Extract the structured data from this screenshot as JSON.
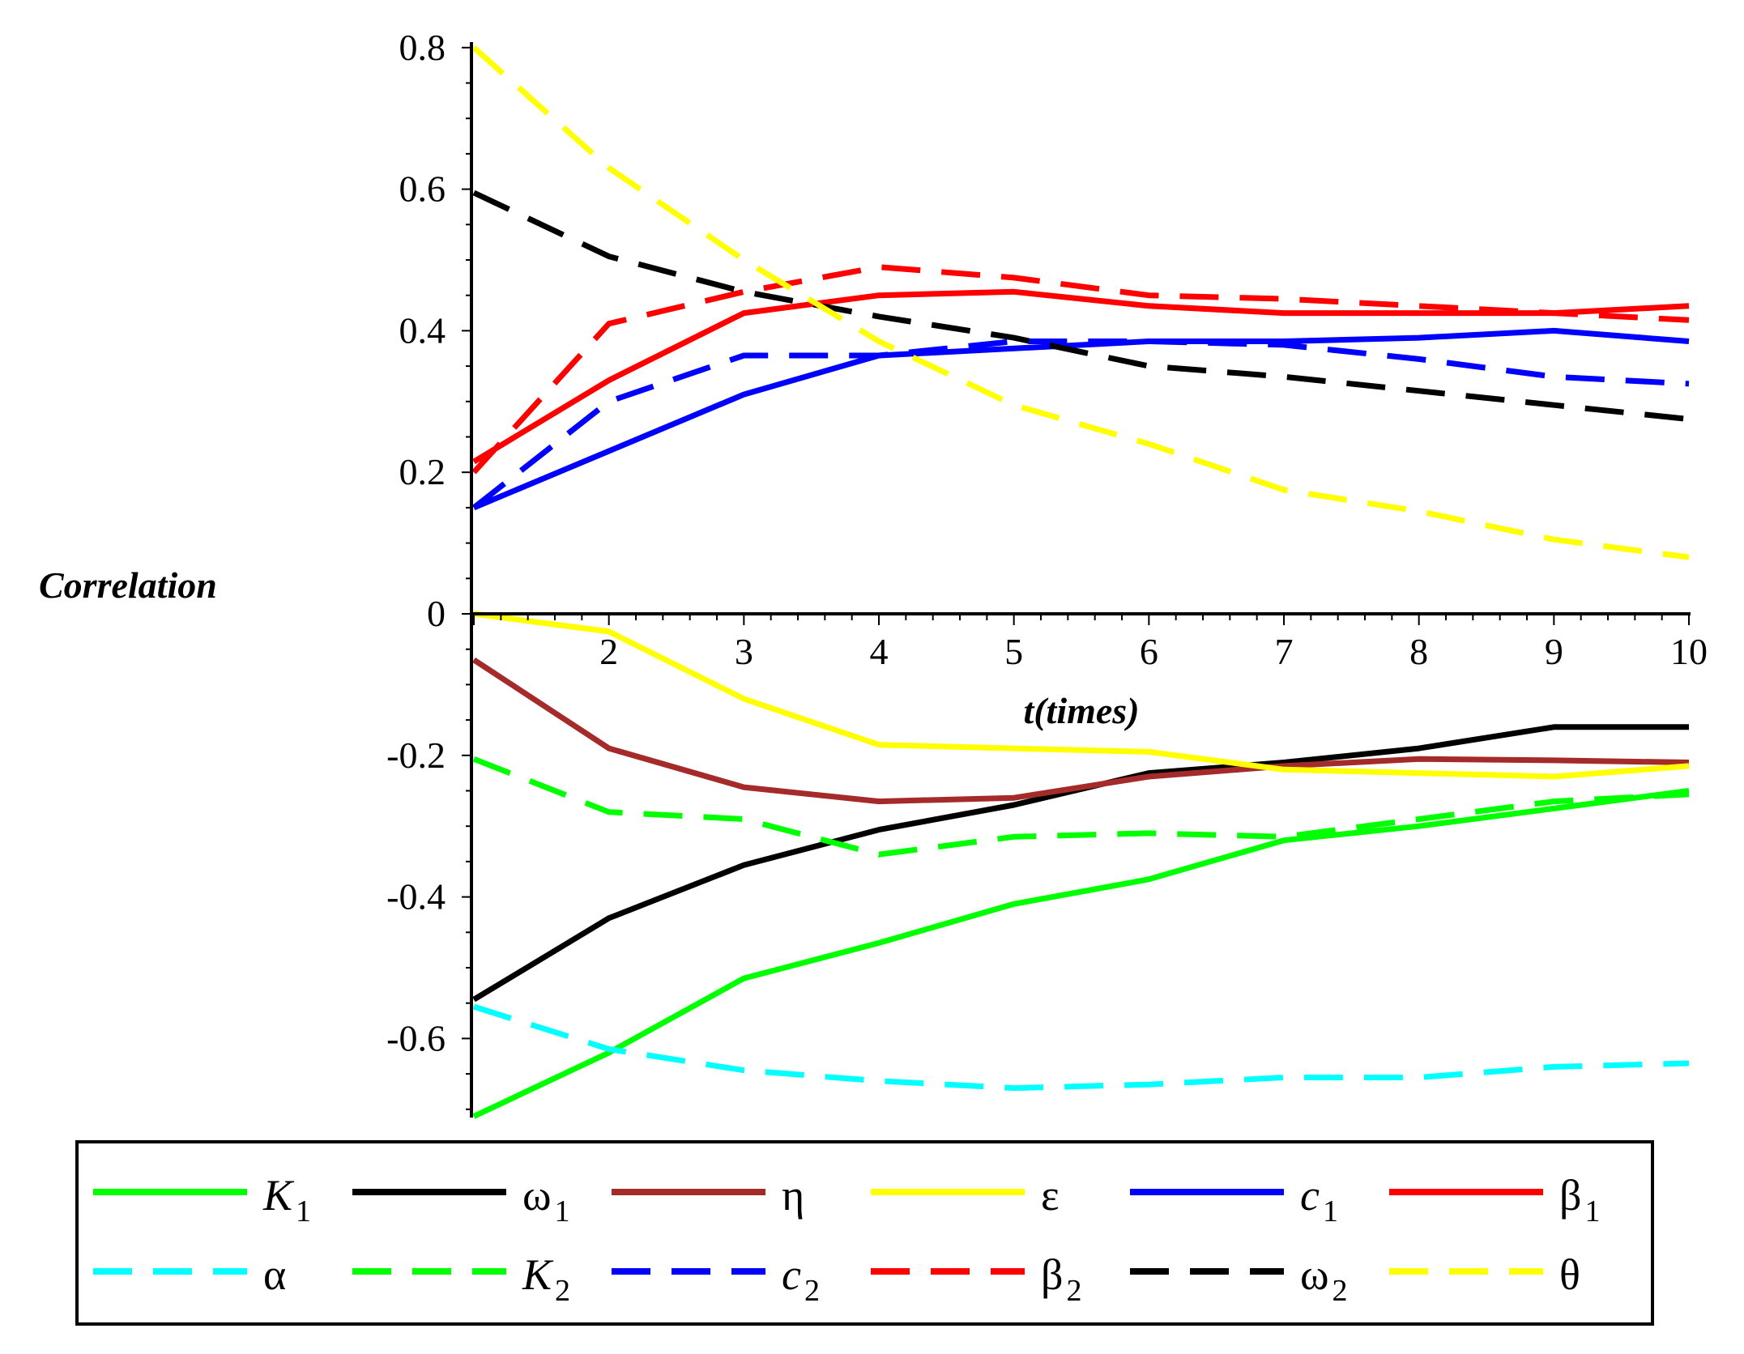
{
  "chart_data": {
    "type": "line",
    "title": "",
    "xlabel": "t(times)",
    "ylabel": "Correlation",
    "xlim": [
      1,
      10
    ],
    "ylim": [
      -0.72,
      0.82
    ],
    "x": [
      1,
      2,
      3,
      4,
      5,
      6,
      7,
      8,
      9,
      10
    ],
    "xticks": [
      "2",
      "3",
      "4",
      "5",
      "6",
      "7",
      "8",
      "9",
      "10"
    ],
    "yticks": [
      "0.8",
      "0.6",
      "0.4",
      "0.2",
      "0",
      "-0.2",
      "-0.4",
      "-0.6"
    ],
    "ytick_values": [
      0.8,
      0.6,
      0.4,
      0.2,
      0,
      -0.2,
      -0.4,
      -0.6
    ],
    "grid": false,
    "legend_position": "bottom",
    "series": [
      {
        "name": "K1",
        "label": "K",
        "sub": "1",
        "italic": true,
        "color": "#00ff00",
        "dashed": false,
        "values": [
          -0.71,
          -0.62,
          -0.515,
          -0.465,
          -0.41,
          -0.375,
          -0.32,
          -0.3,
          -0.275,
          -0.25
        ]
      },
      {
        "name": "ω1",
        "label": "ω",
        "sub": "1",
        "italic": false,
        "color": "#000000",
        "dashed": false,
        "values": [
          -0.545,
          -0.43,
          -0.355,
          -0.305,
          -0.27,
          -0.225,
          -0.21,
          -0.19,
          -0.16,
          -0.16
        ]
      },
      {
        "name": "η",
        "label": "η",
        "sub": "",
        "italic": false,
        "color": "#a52a2a",
        "dashed": false,
        "values": [
          -0.065,
          -0.19,
          -0.245,
          -0.265,
          -0.26,
          -0.23,
          -0.215,
          -0.205,
          -0.207,
          -0.21
        ]
      },
      {
        "name": "ε",
        "label": "ε",
        "sub": "",
        "italic": false,
        "color": "#ffff00",
        "dashed": false,
        "values": [
          0.0,
          -0.025,
          -0.12,
          -0.185,
          -0.19,
          -0.195,
          -0.22,
          -0.225,
          -0.23,
          -0.215
        ]
      },
      {
        "name": "c1",
        "label": "c",
        "sub": "1",
        "italic": true,
        "color": "#0000ff",
        "dashed": false,
        "values": [
          0.15,
          0.23,
          0.31,
          0.365,
          0.375,
          0.385,
          0.385,
          0.39,
          0.4,
          0.385
        ]
      },
      {
        "name": "β1",
        "label": "β",
        "sub": "1",
        "italic": false,
        "color": "#ff0000",
        "dashed": false,
        "values": [
          0.215,
          0.33,
          0.425,
          0.45,
          0.455,
          0.435,
          0.425,
          0.425,
          0.425,
          0.435
        ]
      },
      {
        "name": "α",
        "label": "α",
        "sub": "",
        "italic": false,
        "color": "#00ffff",
        "dashed": true,
        "values": [
          -0.555,
          -0.615,
          -0.645,
          -0.66,
          -0.67,
          -0.665,
          -0.655,
          -0.655,
          -0.64,
          -0.635
        ]
      },
      {
        "name": "K2",
        "label": "K",
        "sub": "2",
        "italic": true,
        "color": "#00ff00",
        "dashed": true,
        "values": [
          -0.205,
          -0.28,
          -0.29,
          -0.34,
          -0.315,
          -0.31,
          -0.315,
          -0.29,
          -0.265,
          -0.255
        ]
      },
      {
        "name": "c2",
        "label": "c",
        "sub": "2",
        "italic": true,
        "color": "#0000ff",
        "dashed": true,
        "values": [
          0.15,
          0.3,
          0.365,
          0.365,
          0.385,
          0.385,
          0.38,
          0.36,
          0.335,
          0.325
        ]
      },
      {
        "name": "β2",
        "label": "β",
        "sub": "2",
        "italic": false,
        "color": "#ff0000",
        "dashed": true,
        "values": [
          0.2,
          0.41,
          0.455,
          0.49,
          0.475,
          0.45,
          0.445,
          0.435,
          0.425,
          0.415
        ]
      },
      {
        "name": "ω2",
        "label": "ω",
        "sub": "2",
        "italic": false,
        "color": "#000000",
        "dashed": true,
        "values": [
          0.595,
          0.505,
          0.455,
          0.42,
          0.39,
          0.35,
          0.335,
          0.315,
          0.295,
          0.275
        ]
      },
      {
        "name": "θ",
        "label": "θ",
        "sub": "",
        "italic": false,
        "color": "#ffff00",
        "dashed": true,
        "values": [
          0.8,
          0.63,
          0.5,
          0.385,
          0.295,
          0.24,
          0.175,
          0.145,
          0.105,
          0.08
        ]
      }
    ]
  }
}
